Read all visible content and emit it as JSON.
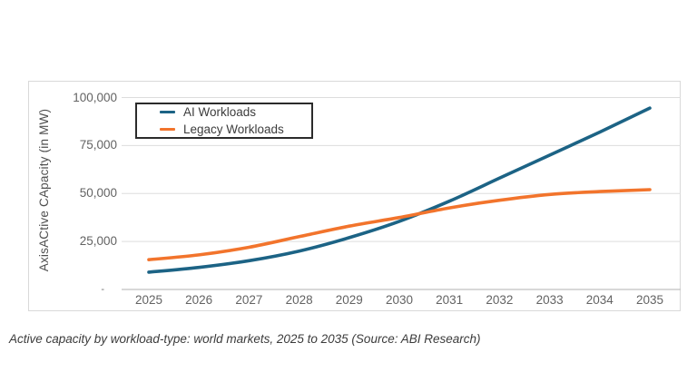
{
  "caption": "Active capacity by workload-type: world markets, 2025 to 2035 (Source: ABI Research)",
  "chart_data": {
    "type": "line",
    "title": "",
    "xlabel": "",
    "ylabel": "AxisACtive CApacity (in MW)",
    "x": [
      2025,
      2026,
      2027,
      2028,
      2029,
      2030,
      2031,
      2032,
      2033,
      2034,
      2035
    ],
    "series": [
      {
        "name": "AI Workloads",
        "color": "#1c6385",
        "values": [
          9000,
          11500,
          15000,
          20000,
          27000,
          35500,
          46000,
          58000,
          70000,
          82000,
          94500
        ]
      },
      {
        "name": "Legacy Workloads",
        "color": "#f2742c",
        "values": [
          15500,
          18000,
          22000,
          27500,
          33000,
          37500,
          42500,
          46500,
          49500,
          51000,
          52000
        ]
      }
    ],
    "ylim": [
      0,
      100000
    ],
    "y_ticks": [
      {
        "value": 100000,
        "label": "100,000"
      },
      {
        "value": 75000,
        "label": "75,000"
      },
      {
        "value": 50000,
        "label": "50,000"
      },
      {
        "value": 25000,
        "label": "25,000"
      },
      {
        "value": 0,
        "label": "-"
      }
    ],
    "grid": true,
    "legend_position": "top-left-inside",
    "colors": {
      "gridline": "#dddddd",
      "axis_line": "#c0c0c0",
      "tick_text": "#636363",
      "frame_border": "#d9d9d9"
    }
  }
}
